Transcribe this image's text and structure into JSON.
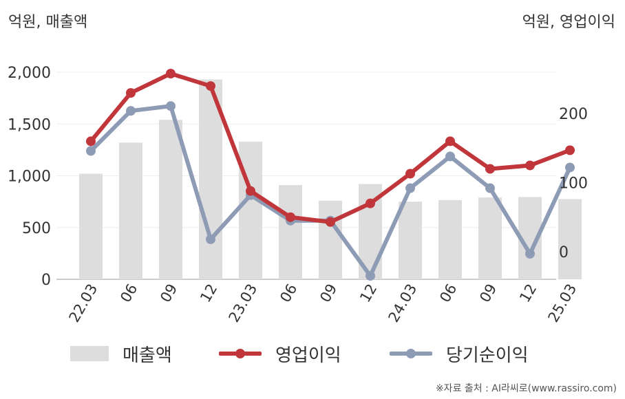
{
  "units": {
    "left": "억원, 매출액",
    "right": "억원, 영업이익"
  },
  "source": "※자료 출처 : AI라씨로(www.rassiro.com)",
  "colors": {
    "bar": "#dddddd",
    "op": "#c0363a",
    "net": "#8e9bb5"
  },
  "chart_data": {
    "type": "bar",
    "categories": [
      "22.03",
      "06",
      "09",
      "12",
      "23.03",
      "06",
      "09",
      "12",
      "24.03",
      "06",
      "09",
      "12",
      "25.03"
    ],
    "left_axis": {
      "ylim": [
        0,
        2000
      ],
      "ticks": [
        "0",
        "500",
        "1,000",
        "1,500",
        "2,000"
      ]
    },
    "right_axis": {
      "ylim": [
        -40,
        260
      ],
      "ticks": [
        "0",
        "100",
        "200"
      ]
    },
    "grid": true,
    "legend_position": "bottom",
    "series": [
      {
        "name": "매출액",
        "type": "bar",
        "axis": "left",
        "values": [
          1020,
          1320,
          1540,
          1930,
          1330,
          910,
          760,
          920,
          750,
          765,
          790,
          795,
          775
        ]
      },
      {
        "name": "영업이익",
        "type": "line",
        "axis": "right",
        "values": [
          160,
          230,
          258,
          240,
          88,
          50,
          43,
          70,
          113,
          160,
          120,
          125,
          147
        ]
      },
      {
        "name": "당기순이익",
        "type": "line",
        "axis": "right",
        "values": [
          146,
          204,
          211,
          18,
          82,
          45,
          45,
          -35,
          92,
          138,
          92,
          -3,
          122
        ]
      }
    ]
  }
}
